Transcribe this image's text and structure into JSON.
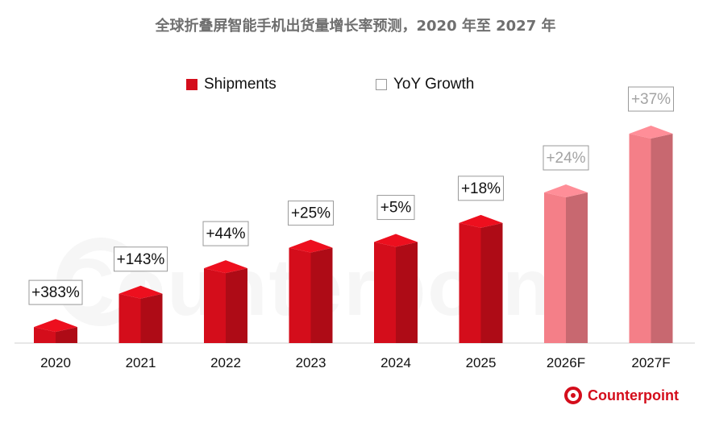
{
  "title": "全球折叠屏智能手机出货量增长率预测，2020 年至 2027 年",
  "legend": {
    "shipments": "Shipments",
    "growth": "YoY Growth"
  },
  "brand": {
    "name": "Counterpoint"
  },
  "colors": {
    "actual": "#d40d1b",
    "forecast": "#f47f88",
    "label_border": "#9a9a9a"
  },
  "chart_data": {
    "type": "bar",
    "categories": [
      "2020",
      "2021",
      "2022",
      "2023",
      "2024",
      "2025",
      "2026F",
      "2027F"
    ],
    "series": [
      {
        "name": "Shipments",
        "values": [
          3.4,
          8.1,
          11.7,
          14.6,
          15.4,
          18.1,
          22.4,
          30.7
        ]
      }
    ],
    "growth_labels": [
      "+383%",
      "+143%",
      "+44%",
      "+25%",
      "+5%",
      "+18%",
      "+24%",
      "+37%"
    ],
    "forecast": [
      false,
      false,
      false,
      false,
      false,
      false,
      true,
      true
    ],
    "yaxis_visible": false
  }
}
